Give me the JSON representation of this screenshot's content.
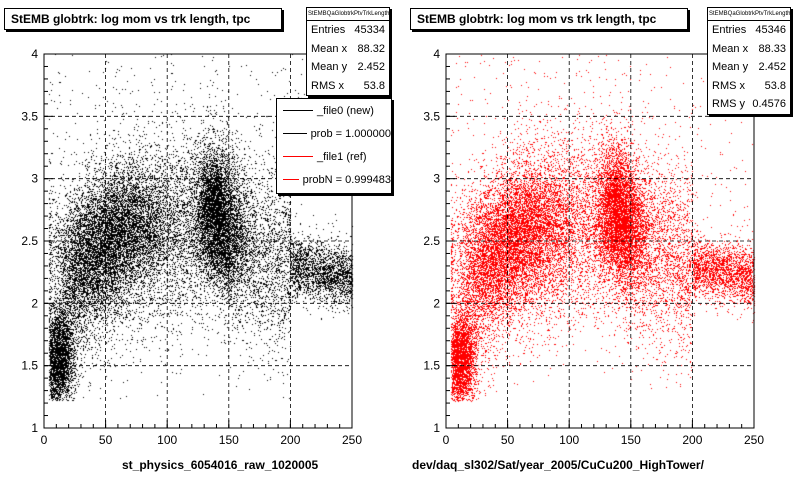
{
  "chart_data": [
    {
      "type": "scatter",
      "title": "StEMB globtrk: log mom vs trk length, tpc",
      "xlabel": "st_physics_6054016_raw_1020005",
      "ylabel": "",
      "xlim": [
        0,
        250
      ],
      "ylim": [
        1,
        4
      ],
      "xticks": [
        "0",
        "50",
        "100",
        "150",
        "200",
        "250"
      ],
      "yticks": [
        "1",
        "1.5",
        "2",
        "2.5",
        "3",
        "3.5",
        "4"
      ],
      "grid": true,
      "marker_color": "#000000",
      "stats": {
        "name": "StEMBQaGlobtrkPtvTrkLength",
        "rows": [
          {
            "label": "Entries",
            "value": "45334"
          },
          {
            "label": "Mean x",
            "value": "88.32"
          },
          {
            "label": "Mean y",
            "value": "2.452"
          },
          {
            "label": "RMS x",
            "value": "53.8"
          }
        ]
      },
      "legend": [
        {
          "label": "_file0 (new)",
          "color": "#000000"
        },
        {
          "label": "prob = 1.000000",
          "color": "#000000"
        },
        {
          "label": "_file1 (ref)",
          "color": "#ff0000"
        },
        {
          "label": "probN = 0.999483",
          "color": "#ff0000"
        }
      ],
      "density": {
        "ridge": [
          [
            5,
            1.3
          ],
          [
            15,
            1.8
          ],
          [
            30,
            2.2
          ],
          [
            60,
            2.5
          ],
          [
            100,
            2.6
          ],
          [
            140,
            2.65
          ],
          [
            160,
            2.45
          ],
          [
            200,
            2.3
          ],
          [
            250,
            2.2
          ]
        ],
        "clusters": [
          {
            "x": 12,
            "y": 1.55,
            "weight": 0.09
          },
          {
            "x": 40,
            "y": 2.4,
            "weight": 0.13
          },
          {
            "x": 70,
            "y": 2.65,
            "weight": 0.11
          },
          {
            "x": 138,
            "y": 2.75,
            "weight": 0.14
          },
          {
            "x": 150,
            "y": 2.55,
            "weight": 0.06
          }
        ]
      }
    },
    {
      "type": "scatter",
      "title": "StEMB globtrk: log mom vs trk length, tpc",
      "xlabel": "dev/daq_sl302/Sat/year_2005/CuCu200_HighTower/",
      "ylabel": "",
      "xlim": [
        0,
        250
      ],
      "ylim": [
        1,
        4
      ],
      "xticks": [
        "0",
        "50",
        "100",
        "150",
        "200",
        "250"
      ],
      "yticks": [
        "1",
        "1.5",
        "2",
        "2.5",
        "3",
        "3.5",
        "4"
      ],
      "grid": true,
      "marker_color": "#ff0000",
      "stats": {
        "name": "StEMBQaGlobtrkPtvTrkLength",
        "rows": [
          {
            "label": "Entries",
            "value": "45346"
          },
          {
            "label": "Mean x",
            "value": "88.33"
          },
          {
            "label": "Mean y",
            "value": "2.452"
          },
          {
            "label": "RMS x",
            "value": "53.8"
          },
          {
            "label": "RMS y",
            "value": "0.4576"
          }
        ]
      },
      "density": {
        "ridge": [
          [
            5,
            1.3
          ],
          [
            15,
            1.8
          ],
          [
            30,
            2.2
          ],
          [
            60,
            2.5
          ],
          [
            100,
            2.6
          ],
          [
            140,
            2.65
          ],
          [
            160,
            2.45
          ],
          [
            200,
            2.3
          ],
          [
            250,
            2.2
          ]
        ],
        "clusters": [
          {
            "x": 12,
            "y": 1.55,
            "weight": 0.09
          },
          {
            "x": 40,
            "y": 2.4,
            "weight": 0.13
          },
          {
            "x": 70,
            "y": 2.65,
            "weight": 0.11
          },
          {
            "x": 138,
            "y": 2.75,
            "weight": 0.14
          },
          {
            "x": 150,
            "y": 2.55,
            "weight": 0.06
          }
        ]
      }
    }
  ]
}
